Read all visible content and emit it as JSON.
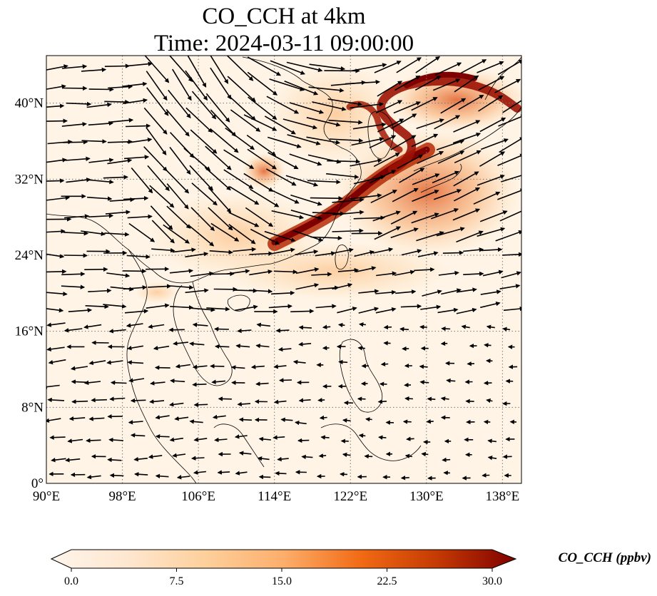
{
  "title_line1": "CO_CCH at 4km",
  "title_line2": "Time: 2024-03-11 09:00:00",
  "map": {
    "lon_range": [
      90,
      140
    ],
    "lat_range": [
      0,
      45
    ],
    "lon_ticks": [
      {
        "value": 90,
        "label": "90°E"
      },
      {
        "value": 98,
        "label": "98°E"
      },
      {
        "value": 106,
        "label": "106°E"
      },
      {
        "value": 114,
        "label": "114°E"
      },
      {
        "value": 122,
        "label": "122°E"
      },
      {
        "value": 130,
        "label": "130°E"
      },
      {
        "value": 138,
        "label": "138°E"
      }
    ],
    "lat_ticks": [
      {
        "value": 0,
        "label": "0°"
      },
      {
        "value": 8,
        "label": "8°N"
      },
      {
        "value": 16,
        "label": "16°N"
      },
      {
        "value": 24,
        "label": "24°N"
      },
      {
        "value": 32,
        "label": "32°N"
      },
      {
        "value": 40,
        "label": "40°N"
      }
    ],
    "gridlines": "dotted"
  },
  "colorbar": {
    "label": "CO_CCH (ppbv)",
    "min": 0,
    "max": 30,
    "ticks": [
      {
        "value": 0,
        "label": "0.0"
      },
      {
        "value": 7.5,
        "label": "7.5"
      },
      {
        "value": 15,
        "label": "15.0"
      },
      {
        "value": 22.5,
        "label": "22.5"
      },
      {
        "value": 30,
        "label": "30.0"
      }
    ],
    "colormap": [
      "#fff5eb",
      "#fdd49e",
      "#fdae6b",
      "#f16913",
      "#d94801",
      "#a63603",
      "#7f0000"
    ]
  }
}
